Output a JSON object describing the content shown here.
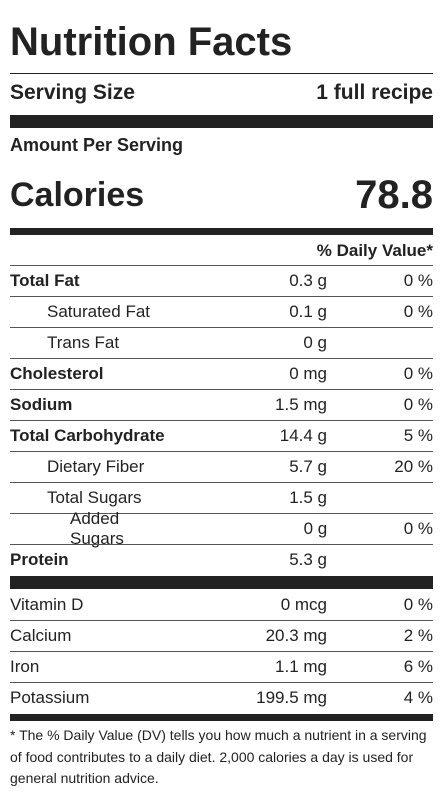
{
  "label": {
    "title": "Nutrition Facts",
    "serving_size_label": "Serving Size",
    "serving_size_value": "1 full recipe",
    "amount_per_serving": "Amount Per Serving",
    "calories_label": "Calories",
    "calories_value": "78.8",
    "daily_value_header": "% Daily Value*",
    "nutrients": [
      {
        "name": "Total Fat",
        "amount": "0.3 g",
        "dv": "0 %"
      },
      {
        "name": "Saturated Fat",
        "amount": "0.1 g",
        "dv": "0 %"
      },
      {
        "name": "Trans Fat",
        "amount": "0 g",
        "dv": ""
      },
      {
        "name": "Cholesterol",
        "amount": "0 mg",
        "dv": "0 %"
      },
      {
        "name": "Sodium",
        "amount": "1.5 mg",
        "dv": "0 %"
      },
      {
        "name": "Total Carbohydrate",
        "amount": "14.4 g",
        "dv": "5 %"
      },
      {
        "name": "Dietary Fiber",
        "amount": "5.7 g",
        "dv": "20 %"
      },
      {
        "name": "Total Sugars",
        "amount": "1.5 g",
        "dv": ""
      },
      {
        "name": "Added Sugars",
        "amount": "0 g",
        "dv": "0 %"
      },
      {
        "name": "Protein",
        "amount": "5.3 g",
        "dv": ""
      }
    ],
    "vitamins": [
      {
        "name": "Vitamin D",
        "amount": "0 mcg",
        "dv": "0 %"
      },
      {
        "name": "Calcium",
        "amount": "20.3 mg",
        "dv": "2 %"
      },
      {
        "name": "Iron",
        "amount": "1.1 mg",
        "dv": "6 %"
      },
      {
        "name": "Potassium",
        "amount": "199.5 mg",
        "dv": "4 %"
      }
    ],
    "footnote": "* The % Daily Value (DV) tells you how much a nutrient in a serving of food contributes to a daily diet. 2,000 calories a day is used for general nutrition advice."
  },
  "colors": {
    "text": "#222222",
    "rule": "#222222",
    "background": "#ffffff"
  }
}
